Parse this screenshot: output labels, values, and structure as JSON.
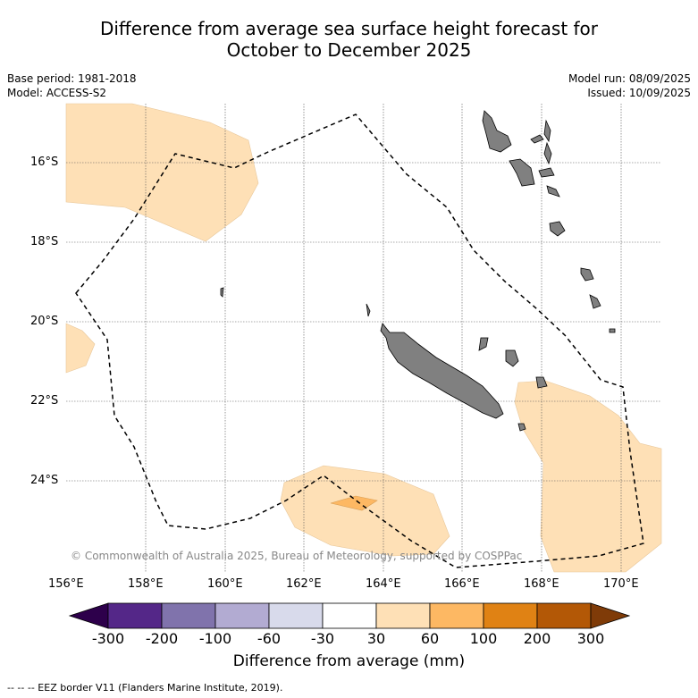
{
  "header": {
    "title_line1": "Difference from average sea surface height forecast for",
    "title_line2": "October to December 2025"
  },
  "meta": {
    "base_period": "Base period: 1981-2018",
    "model": "Model: ACCESS-S2",
    "model_run": "Model run: 08/09/2025",
    "issued": "Issued: 10/09/2025"
  },
  "map": {
    "copyright": "© Commonwealth of Australia 2025, Bureau of Meteorology, supported by COSPPac",
    "lat_labels": [
      "16°S",
      "18°S",
      "20°S",
      "22°S",
      "24°S"
    ],
    "lon_labels": [
      "156°E",
      "158°E",
      "160°E",
      "162°E",
      "164°E",
      "166°E",
      "168°E",
      "170°E"
    ],
    "land_color": "#808080",
    "eez_line_style": "dashed black"
  },
  "colorbar": {
    "label": "Difference from average (mm)",
    "ticks": [
      "-300",
      "-200",
      "-100",
      "-60",
      "-30",
      "30",
      "60",
      "100",
      "200",
      "300"
    ],
    "colors": [
      "#2d004b",
      "#542788",
      "#8073ac",
      "#b2abd2",
      "#d8daeb",
      "#ffffff",
      "#fee0b6",
      "#fdb863",
      "#e08214",
      "#b35806",
      "#7f3b08"
    ]
  },
  "footer": {
    "eez_note": "--  --  -- EEZ border V11 (Flanders Marine Institute, 2019)."
  }
}
